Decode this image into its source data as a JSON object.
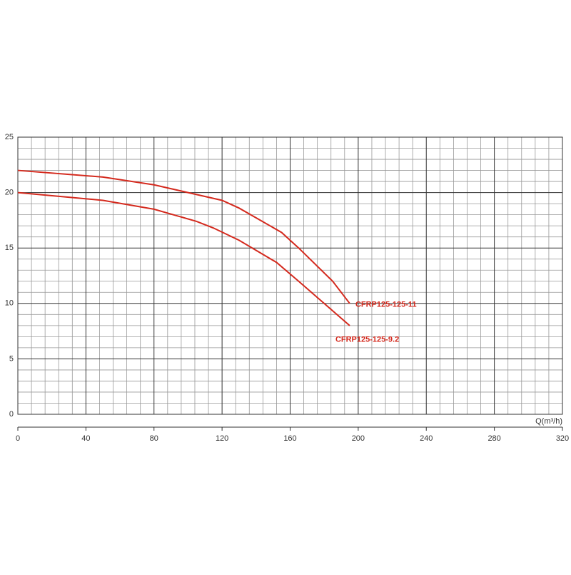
{
  "chart_data": {
    "type": "line",
    "x_label": "Q(m³/h)",
    "xlim": [
      0,
      320
    ],
    "xticks": [
      0,
      40,
      80,
      120,
      160,
      200,
      240,
      280,
      320
    ],
    "ylim": [
      0,
      25
    ],
    "yticks": [
      0,
      5,
      10,
      15,
      20,
      25
    ],
    "grid": true,
    "series": [
      {
        "name": "CFRP125-125-11",
        "color": "#d42a1e",
        "x": [
          0,
          50,
          80,
          100,
          120,
          130,
          155,
          165,
          185,
          195
        ],
        "values": [
          22,
          21.4,
          20.7,
          20,
          19.3,
          18.6,
          16.4,
          15,
          12,
          10
        ]
      },
      {
        "name": "CFRP125-125-9.2",
        "color": "#d42a1e",
        "x": [
          0,
          50,
          80,
          105,
          115,
          130,
          152,
          165,
          195
        ],
        "values": [
          20,
          19.3,
          18.5,
          17.4,
          16.8,
          15.7,
          13.7,
          12,
          8
        ]
      }
    ]
  }
}
